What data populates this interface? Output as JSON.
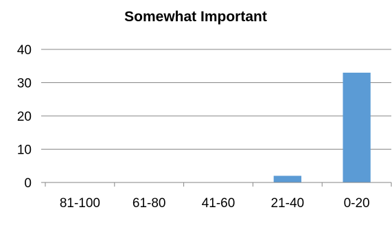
{
  "chart_data": {
    "type": "bar",
    "title": "Somewhat Important",
    "categories": [
      "81-100",
      "61-80",
      "41-60",
      "21-40",
      "0-20"
    ],
    "values": [
      0,
      0,
      0,
      2,
      33
    ],
    "ylim": [
      0,
      40
    ],
    "yticks": [
      "0",
      "10",
      "20",
      "30",
      "40"
    ],
    "grid": true,
    "legend": "none",
    "bar_color": "#5B9BD5",
    "grid_color": "#868686",
    "axis_color": "#868686"
  }
}
